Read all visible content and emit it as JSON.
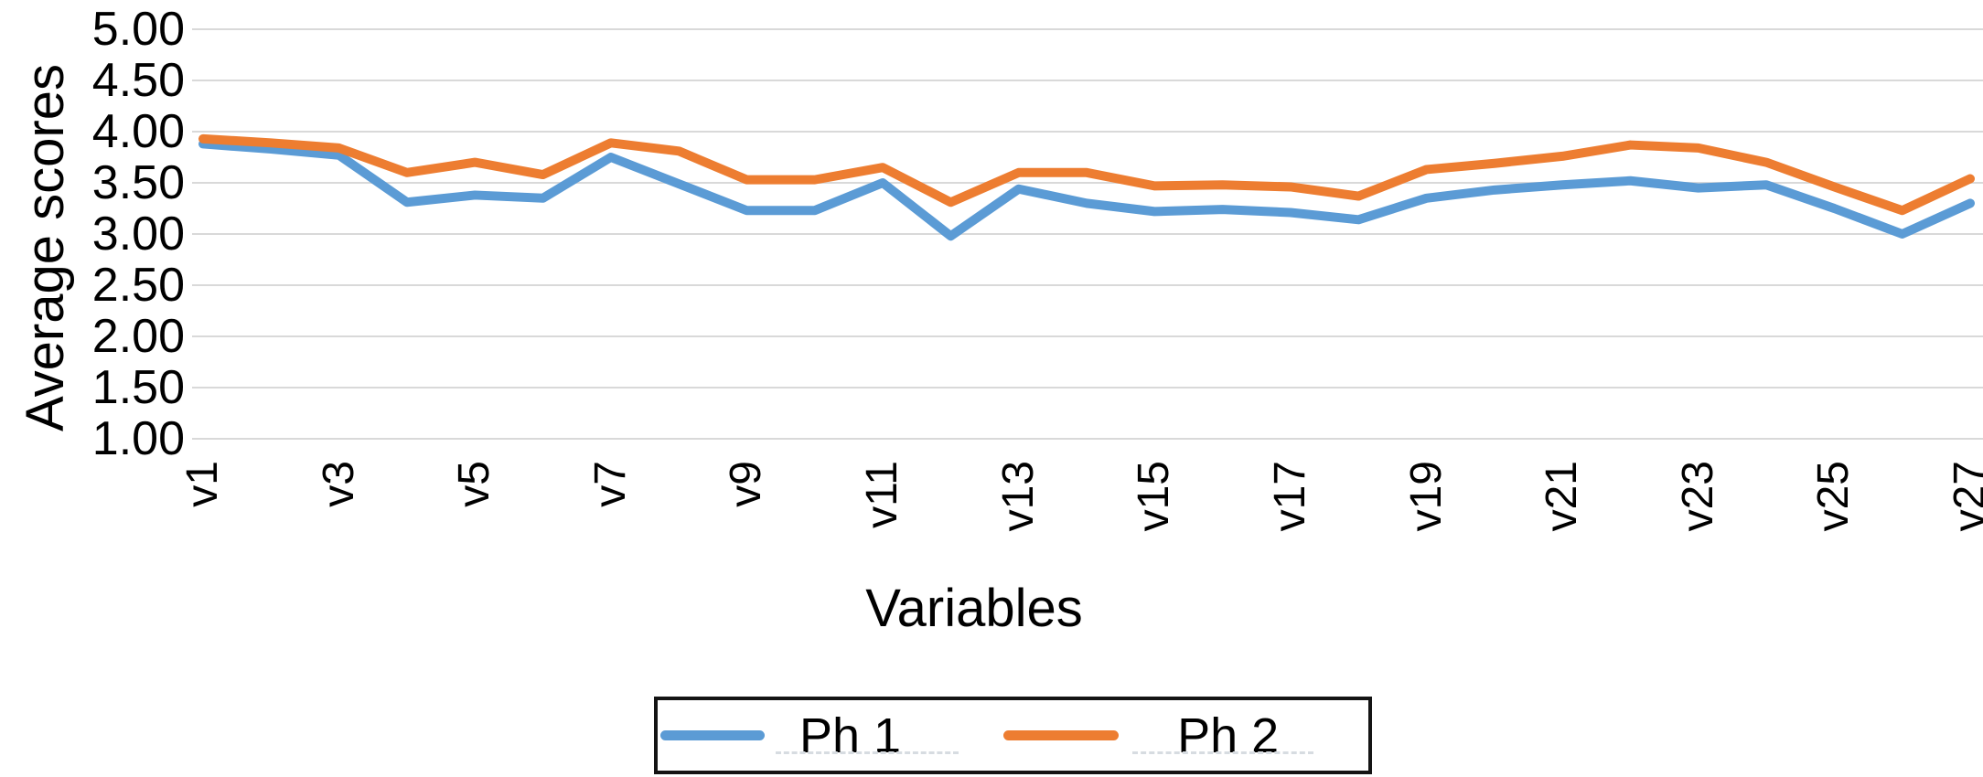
{
  "figure": {
    "x_axis_title": "Variables",
    "y_axis_title": "Average scores"
  },
  "chart_data": {
    "type": "line",
    "title": "",
    "xlabel": "Variables",
    "ylabel": "Average scores",
    "categories": [
      "v1",
      "v2",
      "v3",
      "v4",
      "v5",
      "v6",
      "v7",
      "v8",
      "v9",
      "v10",
      "v11",
      "v12",
      "v13",
      "v14",
      "v15",
      "v16",
      "v17",
      "v18",
      "v19",
      "v20",
      "v21",
      "v22",
      "v23",
      "v24",
      "v25",
      "v26",
      "v27"
    ],
    "xtick_labels_shown": [
      "v1",
      "v3",
      "v5",
      "v7",
      "v9",
      "v11",
      "v13",
      "v15",
      "v17",
      "v19",
      "v21",
      "v23",
      "v25",
      "v27"
    ],
    "series": [
      {
        "name": "Ph 1",
        "color": "#5B9BD5",
        "values": [
          3.88,
          3.83,
          3.77,
          3.31,
          3.38,
          3.35,
          3.75,
          3.49,
          3.23,
          3.23,
          3.5,
          2.98,
          3.44,
          3.3,
          3.22,
          3.24,
          3.21,
          3.14,
          3.35,
          3.43,
          3.48,
          3.52,
          3.45,
          3.48,
          3.25,
          3.0,
          3.3
        ]
      },
      {
        "name": "Ph 2",
        "color": "#ED7D31",
        "values": [
          3.93,
          3.89,
          3.84,
          3.6,
          3.7,
          3.58,
          3.89,
          3.81,
          3.53,
          3.53,
          3.65,
          3.31,
          3.6,
          3.6,
          3.47,
          3.48,
          3.46,
          3.37,
          3.63,
          3.69,
          3.76,
          3.87,
          3.84,
          3.7,
          3.46,
          3.23,
          3.54
        ]
      }
    ],
    "ylim": [
      1.0,
      5.0
    ],
    "ytick_step": 0.5,
    "ytick_labels": [
      "5.00",
      "4.50",
      "4.00",
      "3.50",
      "3.00",
      "2.50",
      "2.00",
      "1.50",
      "1.00"
    ],
    "grid": true,
    "gridline_color": "#d9d9d9",
    "legend_position": "bottom",
    "legend_labels": [
      "Ph 1",
      "Ph 2"
    ]
  }
}
